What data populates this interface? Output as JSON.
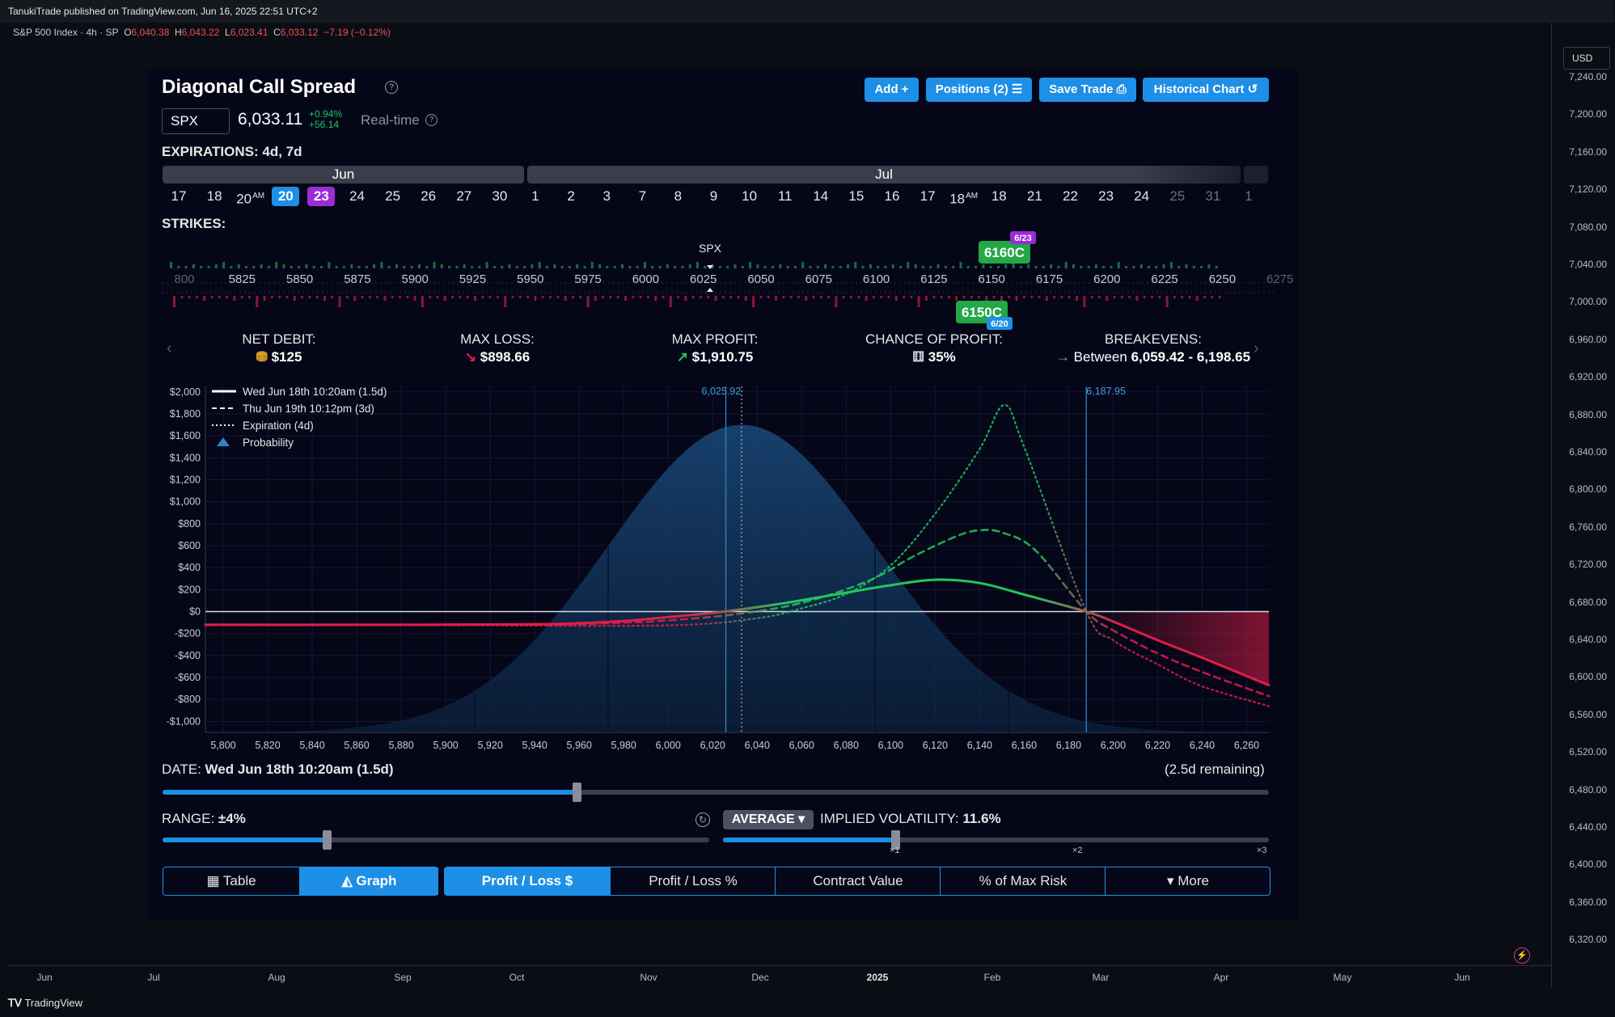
{
  "header": {
    "published": "TanukiTrade published on TradingView.com, Jun 16, 2025 22:51 UTC+2"
  },
  "symbol_line": {
    "name": "S&P 500 Index · 4h · SP",
    "o_label": "O",
    "o": "6,040.38",
    "h_label": "H",
    "h": "6,043.22",
    "l_label": "L",
    "l": "6,023.41",
    "c_label": "C",
    "c": "6,033.12",
    "change": "−7.19 (−0.12%)"
  },
  "price_axis": {
    "currency": "USD",
    "ticks": [
      "7,240.00",
      "7,200.00",
      "7,160.00",
      "7,120.00",
      "7,080.00",
      "7,040.00",
      "7,000.00",
      "6,960.00",
      "6,920.00",
      "6,880.00",
      "6,840.00",
      "6,800.00",
      "6,760.00",
      "6,720.00",
      "6,680.00",
      "6,640.00",
      "6,600.00",
      "6,560.00",
      "6,520.00",
      "6,480.00",
      "6,440.00",
      "6,400.00",
      "6,360.00",
      "6,320.00"
    ]
  },
  "time_axis": {
    "ticks": [
      "Jun",
      "Jul",
      "Aug",
      "Sep",
      "Oct",
      "Nov",
      "Dec",
      "2025",
      "Feb",
      "Mar",
      "Apr",
      "May",
      "Jun"
    ]
  },
  "footer": {
    "brand": "TradingView"
  },
  "panel": {
    "title": "Diagonal Call Spread",
    "buttons": {
      "add": "Add +",
      "positions": "Positions (2) ☰",
      "save": "Save Trade ⎙",
      "historical": "Historical Chart ↺"
    },
    "ticker": "SPX",
    "price": "6,033.11",
    "change_pct": "+0.94%",
    "change_abs": "+56.14",
    "realtime": "Real-time",
    "expirations_label": "EXPIRATIONS: 4d, 7d",
    "months": [
      "Jun",
      "Jul"
    ],
    "dates": [
      {
        "d": "17"
      },
      {
        "d": "18"
      },
      {
        "d": "20",
        "am": "AM"
      },
      {
        "d": "20",
        "sel": "blue"
      },
      {
        "d": "23",
        "sel": "purple"
      },
      {
        "d": "24"
      },
      {
        "d": "25"
      },
      {
        "d": "26"
      },
      {
        "d": "27"
      },
      {
        "d": "30"
      },
      {
        "d": "1"
      },
      {
        "d": "2"
      },
      {
        "d": "3"
      },
      {
        "d": "7"
      },
      {
        "d": "8"
      },
      {
        "d": "9"
      },
      {
        "d": "10"
      },
      {
        "d": "11"
      },
      {
        "d": "14"
      },
      {
        "d": "15"
      },
      {
        "d": "16"
      },
      {
        "d": "17"
      },
      {
        "d": "18",
        "am": "AM"
      },
      {
        "d": "18"
      },
      {
        "d": "21"
      },
      {
        "d": "22"
      },
      {
        "d": "23"
      },
      {
        "d": "24"
      },
      {
        "d": "25",
        "fade": true
      },
      {
        "d": "31",
        "fade": true
      },
      {
        "d": "1",
        "fade": true
      }
    ],
    "strikes_label": "STRIKES:",
    "strikes": {
      "ticks": [
        "800",
        "5825",
        "5850",
        "5875",
        "5900",
        "5925",
        "5950",
        "5975",
        "6000",
        "6025",
        "6050",
        "6075",
        "6100",
        "6125",
        "6150",
        "6175",
        "6200",
        "6225",
        "6250",
        "6275"
      ],
      "spx_label": "SPX",
      "long_leg": {
        "label": "6150C",
        "exp": "6/20"
      },
      "short_leg": {
        "label": "6160C",
        "exp": "6/23"
      }
    },
    "metrics": {
      "net_debit_label": "NET DEBIT:",
      "net_debit": "$125",
      "max_loss_label": "MAX LOSS:",
      "max_loss": "$898.66",
      "max_profit_label": "MAX PROFIT:",
      "max_profit": "$1,910.75",
      "chance_label": "CHANCE OF PROFIT:",
      "chance": "35%",
      "breakevens_label": "BREAKEVENS:",
      "breakevens_prefix": "Between",
      "breakevens": "6,059.42 - 6,198.65"
    },
    "date_label": "DATE:",
    "date_value": "Wed Jun 18th 10:20am (1.5d)",
    "date_remaining": "(2.5d remaining)",
    "range_label": "RANGE:",
    "range_value": "±4%",
    "avg_button": "AVERAGE ▾",
    "iv_label": "IMPLIED VOLATILITY:",
    "iv_value": "11.6%",
    "multipliers": [
      "×1",
      "×2",
      "×3"
    ],
    "view_tabs": [
      "Table",
      "Graph"
    ],
    "metric_tabs": [
      "Profit / Loss $",
      "Profit / Loss %",
      "Contract Value",
      "% of Max Risk",
      "▾ More"
    ],
    "date_slider_fraction": 0.374,
    "range_slider_fraction": 0.3,
    "iv_slider_fraction": 0.315
  },
  "chart_data": {
    "type": "line",
    "x_range": [
      5792,
      6270
    ],
    "y_range": [
      -1100,
      2050
    ],
    "xticks": [
      5800,
      5820,
      5840,
      5860,
      5880,
      5900,
      5920,
      5940,
      5960,
      5980,
      6000,
      6020,
      6040,
      6060,
      6080,
      6100,
      6120,
      6140,
      6160,
      6180,
      6200,
      6220,
      6240,
      6260
    ],
    "xtick_labels": [
      "5,800",
      "5,820",
      "5,840",
      "5,860",
      "5,880",
      "5,900",
      "5,920",
      "5,940",
      "5,960",
      "5,980",
      "6,000",
      "6,020",
      "6,040",
      "6,060",
      "6,080",
      "6,100",
      "6,120",
      "6,140",
      "6,160",
      "6,180",
      "6,200",
      "6,220",
      "6,240",
      "6,260"
    ],
    "yticks": [
      2000,
      1800,
      1600,
      1400,
      1200,
      1000,
      800,
      600,
      400,
      200,
      0,
      -200,
      -400,
      -600,
      -800,
      -1000
    ],
    "ytick_labels": [
      "$2,000",
      "$1,800",
      "$1,600",
      "$1,400",
      "$1,200",
      "$1,000",
      "$800",
      "$600",
      "$400",
      "$200",
      "$0",
      "-$200",
      "-$400",
      "-$600",
      "-$800",
      "-$1,000"
    ],
    "vlines": [
      {
        "x": 6025.92,
        "label": "6,025.92"
      },
      {
        "x": 6187.95,
        "label": "6,187.95"
      }
    ],
    "current_price": 6033,
    "legend": [
      "Wed Jun 18th 10:20am (1.5d)",
      "Thu Jun 19th 10:12pm (3d)",
      "Expiration (4d)",
      "Probability"
    ],
    "series": [
      {
        "name": "Wed Jun 18th 10:20am (1.5d)",
        "style": "solid",
        "x": [
          5792,
          5850,
          5900,
          5950,
          5980,
          6000,
          6025,
          6050,
          6075,
          6100,
          6120,
          6140,
          6160,
          6188,
          6200,
          6220,
          6240,
          6270
        ],
        "y": [
          -120,
          -120,
          -118,
          -112,
          -85,
          -50,
          0,
          70,
          155,
          240,
          290,
          260,
          155,
          0,
          -90,
          -260,
          -420,
          -670
        ]
      },
      {
        "name": "Thu Jun 19th 10:12pm (3d)",
        "style": "dashed",
        "x": [
          5792,
          5850,
          5900,
          5950,
          5980,
          6000,
          6030,
          6060,
          6090,
          6110,
          6130,
          6140,
          6150,
          6165,
          6188,
          6200,
          6220,
          6240,
          6270
        ],
        "y": [
          -120,
          -120,
          -120,
          -118,
          -100,
          -80,
          -25,
          80,
          280,
          500,
          690,
          740,
          720,
          560,
          0,
          -170,
          -380,
          -550,
          -770
        ]
      },
      {
        "name": "Expiration (4d)",
        "style": "dotted",
        "x": [
          5792,
          5900,
          6000,
          6040,
          6060,
          6080,
          6100,
          6120,
          6140,
          6151,
          6160,
          6188,
          6200,
          6220,
          6240,
          6270
        ],
        "y": [
          -125,
          -125,
          -125,
          -60,
          30,
          160,
          420,
          890,
          1480,
          1880,
          1500,
          0,
          -260,
          -480,
          -680,
          -860
        ]
      }
    ],
    "probability": {
      "mean": 6033,
      "sd": 60,
      "peak": 1700
    }
  },
  "colors": {
    "blue": "#1e8fe6",
    "green": "#22c55e",
    "red": "#e11d48",
    "purple": "#9b2bd8"
  }
}
